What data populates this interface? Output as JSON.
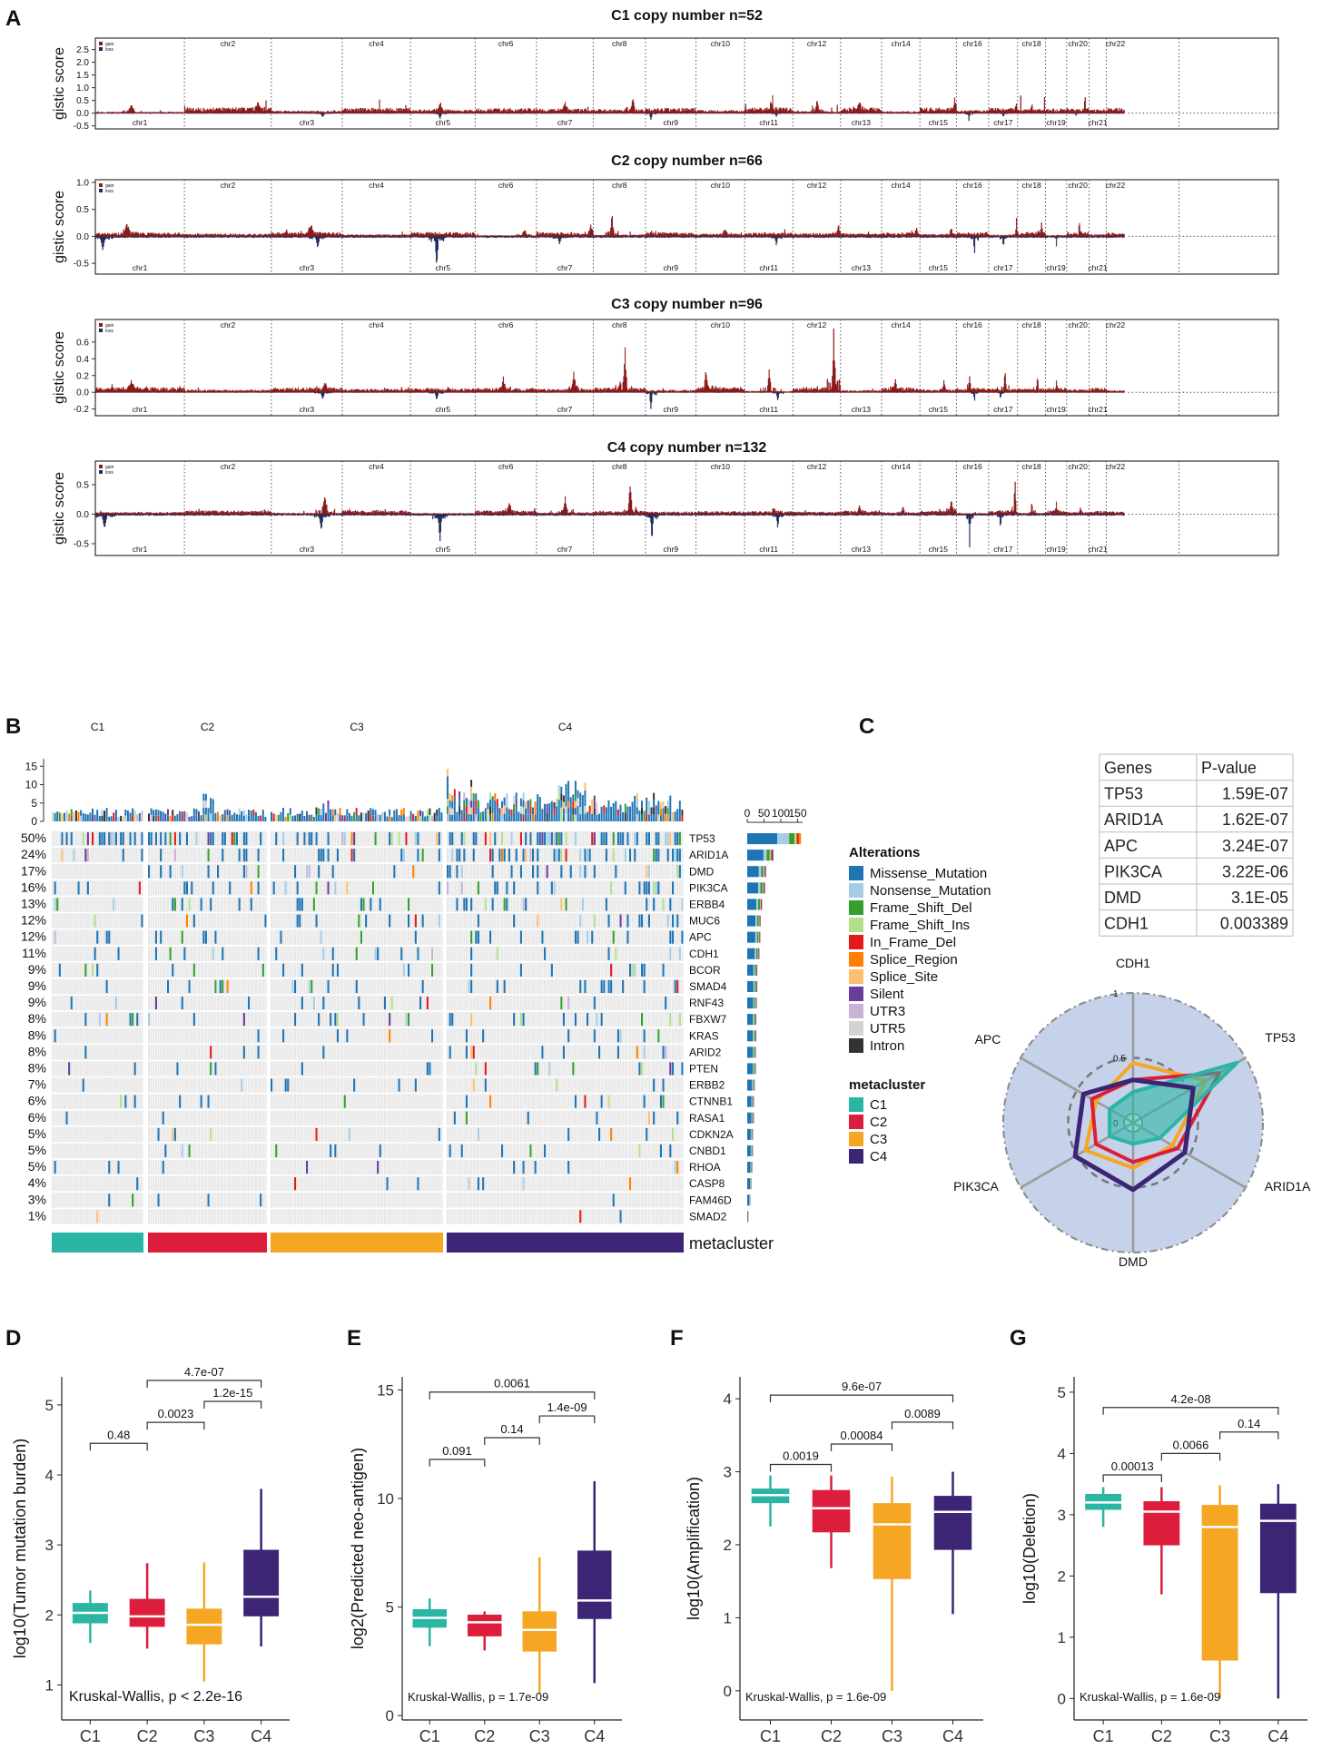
{
  "panel_letters": [
    "A",
    "B",
    "C",
    "D",
    "E",
    "F",
    "G"
  ],
  "colors": {
    "gain": "#8b1a1a",
    "loss": "#1f2b5c",
    "missense": "#1f74b4",
    "nonsense": "#a6cde3",
    "frame_del": "#33a02c",
    "frame_ins": "#b2df8a",
    "inframe_del": "#e31a1c",
    "splice_region": "#ff7f00",
    "splice_site": "#fdbf6f",
    "silent": "#6a3d9a",
    "utr3": "#cab2d6",
    "utr5": "#d3d3d3",
    "intron": "#333333",
    "C1": "#2bb5a5",
    "C2": "#dc1e3c",
    "C3": "#f5a623",
    "C4": "#3d2575",
    "radar_bg": "#c6d2ea"
  },
  "chart_data": [
    {
      "type": "area",
      "panel": "A",
      "charts": [
        {
          "title": "C1 copy number n=52",
          "ylabel": "gistic score",
          "yticks": [
            "2.5",
            "2.0",
            "1.5",
            "1.0",
            "0.5",
            "0.0",
            "-0.5"
          ],
          "ylim": [
            -0.62,
            2.95
          ],
          "gain_scale": 1.0,
          "loss_scale": 0.2
        },
        {
          "title": "C2 copy number n=66",
          "ylabel": "gistic score",
          "yticks": [
            "1.0",
            "0.5",
            "0.0",
            "-0.5"
          ],
          "ylim": [
            -0.7,
            1.05
          ],
          "gain_scale": 0.35,
          "loss_scale": 0.25
        },
        {
          "title": "C3 copy number n=96",
          "ylabel": "gistic score",
          "yticks": [
            "0.6",
            "0.4",
            "0.2",
            "0.0",
            "-0.2"
          ],
          "ylim": [
            -0.28,
            0.87
          ],
          "gain_scale": 0.27,
          "loss_scale": 0.1
        },
        {
          "title": "C4 copy number n=132",
          "ylabel": "gistic score",
          "yticks": [
            "0.5",
            "0.0",
            "-0.5"
          ],
          "ylim": [
            -0.7,
            0.9
          ],
          "gain_scale": 0.28,
          "loss_scale": 0.24
        }
      ],
      "legend": [
        "gain",
        "loss"
      ],
      "chromosomes_top": [
        "chr2",
        "chr4",
        "chr6",
        "chr8",
        "chr10",
        "chr12",
        "chr14",
        "chr16",
        "chr18",
        "chr20",
        "chr22"
      ],
      "chromosomes_bottom": [
        "chr1",
        "chr3",
        "chr5",
        "chr7",
        "chr9",
        "chr11",
        "chr13",
        "chr15",
        "chr17",
        "chr19",
        "chr21"
      ]
    },
    {
      "type": "heatmap",
      "panel": "B",
      "clusters": [
        "C1",
        "C2",
        "C3",
        "C4"
      ],
      "top_yticks": [
        "15",
        "10",
        "5",
        "0"
      ],
      "side_xticks": [
        "0",
        "50",
        "100",
        "150"
      ],
      "genes": [
        {
          "name": "TP53",
          "pct": "50%",
          "count": 160
        },
        {
          "name": "ARID1A",
          "pct": "24%",
          "count": 78
        },
        {
          "name": "DMD",
          "pct": "17%",
          "count": 56
        },
        {
          "name": "PIK3CA",
          "pct": "16%",
          "count": 53
        },
        {
          "name": "ERBB4",
          "pct": "13%",
          "count": 44
        },
        {
          "name": "MUC6",
          "pct": "12%",
          "count": 40
        },
        {
          "name": "APC",
          "pct": "12%",
          "count": 39
        },
        {
          "name": "CDH1",
          "pct": "11%",
          "count": 36
        },
        {
          "name": "BCOR",
          "pct": "9%",
          "count": 30
        },
        {
          "name": "SMAD4",
          "pct": "9%",
          "count": 30
        },
        {
          "name": "RNF43",
          "pct": "9%",
          "count": 29
        },
        {
          "name": "FBXW7",
          "pct": "8%",
          "count": 27
        },
        {
          "name": "KRAS",
          "pct": "8%",
          "count": 27
        },
        {
          "name": "ARID2",
          "pct": "8%",
          "count": 26
        },
        {
          "name": "PTEN",
          "pct": "8%",
          "count": 26
        },
        {
          "name": "ERBB2",
          "pct": "7%",
          "count": 23
        },
        {
          "name": "CTNNB1",
          "pct": "6%",
          "count": 20
        },
        {
          "name": "RASA1",
          "pct": "6%",
          "count": 20
        },
        {
          "name": "CDKN2A",
          "pct": "5%",
          "count": 17
        },
        {
          "name": "CNBD1",
          "pct": "5%",
          "count": 17
        },
        {
          "name": "RHOA",
          "pct": "5%",
          "count": 16
        },
        {
          "name": "CASP8",
          "pct": "4%",
          "count": 13
        },
        {
          "name": "FAM46D",
          "pct": "3%",
          "count": 10
        },
        {
          "name": "SMAD2",
          "pct": "1%",
          "count": 4
        }
      ],
      "alterations_title": "Alterations",
      "alterations": [
        "Missense_Mutation",
        "Nonsense_Mutation",
        "Frame_Shift_Del",
        "Frame_Shift_Ins",
        "In_Frame_Del",
        "Splice_Region",
        "Splice_Site",
        "Silent",
        "UTR3",
        "UTR5",
        "Intron"
      ],
      "metacluster_title": "metacluster",
      "metacluster_label": "metacluster"
    },
    {
      "type": "table",
      "panel": "C",
      "header": [
        "Genes",
        "P-value"
      ],
      "rows": [
        [
          "TP53",
          "1.59E-07"
        ],
        [
          "ARID1A",
          "1.62E-07"
        ],
        [
          "APC",
          "3.24E-07"
        ],
        [
          "PIK3CA",
          "3.22E-06"
        ],
        [
          "DMD",
          "3.1E-05"
        ],
        [
          "CDH1",
          "0.003389"
        ]
      ]
    },
    {
      "type": "radar",
      "panel": "C",
      "axes": [
        "CDH1",
        "TP53",
        "ARID1A",
        "DMD",
        "PIK3CA",
        "APC"
      ],
      "ring_labels": [
        "1",
        "0.5",
        "0"
      ],
      "series": [
        {
          "name": "C1",
          "values": [
            0.18,
            0.92,
            0.18,
            0.1,
            0.15,
            0.15
          ]
        },
        {
          "name": "C2",
          "values": [
            0.28,
            0.75,
            0.35,
            0.25,
            0.28,
            0.32
          ]
        },
        {
          "name": "C3",
          "values": [
            0.42,
            0.62,
            0.3,
            0.3,
            0.38,
            0.28
          ]
        },
        {
          "name": "C4",
          "values": [
            0.28,
            0.5,
            0.42,
            0.48,
            0.48,
            0.4
          ]
        }
      ]
    },
    {
      "type": "box",
      "panel": "D",
      "ylabel": "log10(Tumor mutation burden)",
      "ylim": [
        0.5,
        5.4
      ],
      "yticks": [
        1,
        2,
        3,
        4,
        5
      ],
      "categories": [
        "C1",
        "C2",
        "C3",
        "C4"
      ],
      "boxes": [
        {
          "q1": 1.88,
          "median": 2.03,
          "q3": 2.17,
          "low": 1.6,
          "high": 2.35
        },
        {
          "q1": 1.83,
          "median": 1.98,
          "q3": 2.23,
          "low": 1.52,
          "high": 2.74
        },
        {
          "q1": 1.58,
          "median": 1.86,
          "q3": 2.09,
          "low": 1.05,
          "high": 2.75
        },
        {
          "q1": 1.98,
          "median": 2.26,
          "q3": 2.93,
          "low": 1.55,
          "high": 3.8
        }
      ],
      "comparisons": [
        {
          "from": 0,
          "to": 1,
          "y": 4.45,
          "label": "0.48"
        },
        {
          "from": 1,
          "to": 2,
          "y": 4.75,
          "label": "0.0023"
        },
        {
          "from": 2,
          "to": 3,
          "y": 5.05,
          "label": "1.2e-15"
        },
        {
          "from": 1,
          "to": 3,
          "y": 5.35,
          "label": "4.7e-07"
        }
      ],
      "test": "Kruskal-Wallis, p < 2.2e-16"
    },
    {
      "type": "box",
      "panel": "E",
      "ylabel": "log2(Predicted neo-antigen)",
      "ylim": [
        -0.2,
        15.6
      ],
      "yticks": [
        0,
        5,
        10,
        15
      ],
      "categories": [
        "C1",
        "C2",
        "C3",
        "C4"
      ],
      "boxes": [
        {
          "q1": 4.05,
          "median": 4.5,
          "q3": 4.9,
          "low": 3.2,
          "high": 5.4
        },
        {
          "q1": 3.65,
          "median": 4.3,
          "q3": 4.65,
          "low": 3.0,
          "high": 4.8
        },
        {
          "q1": 2.95,
          "median": 3.95,
          "q3": 4.8,
          "low": 1.0,
          "high": 7.3
        },
        {
          "q1": 4.45,
          "median": 5.3,
          "q3": 7.6,
          "low": 1.5,
          "high": 10.8
        }
      ],
      "comparisons": [
        {
          "from": 0,
          "to": 1,
          "y": 11.8,
          "label": "0.091"
        },
        {
          "from": 1,
          "to": 2,
          "y": 12.8,
          "label": "0.14"
        },
        {
          "from": 2,
          "to": 3,
          "y": 13.8,
          "label": "1.4e-09"
        },
        {
          "from": 0,
          "to": 3,
          "y": 14.9,
          "label": "0.0061"
        }
      ],
      "test": "Kruskal-Wallis, p = 1.7e-09"
    },
    {
      "type": "box",
      "panel": "F",
      "ylabel": "log10(Amplification)",
      "ylim": [
        -0.4,
        4.3
      ],
      "yticks": [
        0,
        1,
        2,
        3,
        4
      ],
      "categories": [
        "C1",
        "C2",
        "C3",
        "C4"
      ],
      "boxes": [
        {
          "q1": 2.57,
          "median": 2.68,
          "q3": 2.77,
          "low": 2.25,
          "high": 2.95
        },
        {
          "q1": 2.17,
          "median": 2.5,
          "q3": 2.75,
          "low": 1.68,
          "high": 2.95
        },
        {
          "q1": 1.53,
          "median": 2.28,
          "q3": 2.57,
          "low": 0.0,
          "high": 2.93
        },
        {
          "q1": 1.93,
          "median": 2.45,
          "q3": 2.67,
          "low": 1.05,
          "high": 3.0
        }
      ],
      "comparisons": [
        {
          "from": 0,
          "to": 1,
          "y": 3.1,
          "label": "0.0019"
        },
        {
          "from": 1,
          "to": 2,
          "y": 3.38,
          "label": "0.00084"
        },
        {
          "from": 2,
          "to": 3,
          "y": 3.68,
          "label": "0.0089"
        },
        {
          "from": 0,
          "to": 3,
          "y": 4.05,
          "label": "9.6e-07"
        }
      ],
      "test": "Kruskal-Wallis, p = 1.6e-09"
    },
    {
      "type": "box",
      "panel": "G",
      "ylabel": "log10(Deletion)",
      "ylim": [
        -0.35,
        5.25
      ],
      "yticks": [
        0,
        1,
        2,
        3,
        4,
        5
      ],
      "categories": [
        "C1",
        "C2",
        "C3",
        "C4"
      ],
      "boxes": [
        {
          "q1": 3.08,
          "median": 3.2,
          "q3": 3.34,
          "low": 2.8,
          "high": 3.45
        },
        {
          "q1": 2.5,
          "median": 3.05,
          "q3": 3.22,
          "low": 1.7,
          "high": 3.45
        },
        {
          "q1": 0.62,
          "median": 2.8,
          "q3": 3.16,
          "low": 0.0,
          "high": 3.48
        },
        {
          "q1": 1.72,
          "median": 2.9,
          "q3": 3.18,
          "low": 0.0,
          "high": 3.5
        }
      ],
      "comparisons": [
        {
          "from": 0,
          "to": 1,
          "y": 3.65,
          "label": "0.00013"
        },
        {
          "from": 1,
          "to": 2,
          "y": 4.0,
          "label": "0.0066"
        },
        {
          "from": 2,
          "to": 3,
          "y": 4.35,
          "label": "0.14"
        },
        {
          "from": 0,
          "to": 3,
          "y": 4.75,
          "label": "4.2e-08"
        }
      ],
      "test": "Kruskal-Wallis, p = 1.6e-09"
    }
  ]
}
